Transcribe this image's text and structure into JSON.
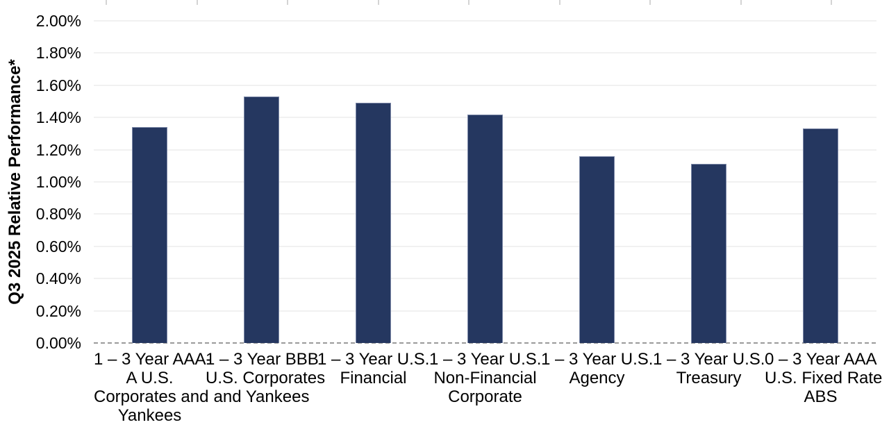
{
  "chart_data": {
    "type": "bar",
    "title": "",
    "xlabel": "",
    "ylabel": "Q3 2025 Relative Performance*",
    "categories": [
      "1 – 3 Year AAA-\nA U.S.\nCorporates and\nYankees",
      "1 – 3 Year BBB\nU.S. Corporates\nand Yankees",
      "1 – 3 Year U.S.\nFinancial",
      "1 – 3 Year U.S.\nNon-Financial\nCorporate",
      "1 – 3 Year U.S.\nAgency",
      "1 – 3 Year U.S.\nTreasury",
      "0 – 3 Year AAA\nU.S. Fixed Rate\nABS"
    ],
    "values": [
      1.34,
      1.53,
      1.49,
      1.42,
      1.16,
      1.11,
      1.33
    ],
    "value_unit": "%",
    "ylim": [
      0,
      2.0
    ],
    "ytick_step": 0.2,
    "ytick_labels": [
      "0.00%",
      "0.20%",
      "0.40%",
      "0.60%",
      "0.80%",
      "1.00%",
      "1.20%",
      "1.40%",
      "1.60%",
      "1.80%",
      "2.00%"
    ],
    "grid": true,
    "legend_position": "none",
    "zero_line_style": "dashed"
  },
  "colors": {
    "bar_fill": "#253760",
    "bar_border": "#7d89a8",
    "gridline": "#f1f1f1",
    "zero_line": "#9a9a9a",
    "top_tick": "#d4d4d4",
    "text": "#000000"
  }
}
